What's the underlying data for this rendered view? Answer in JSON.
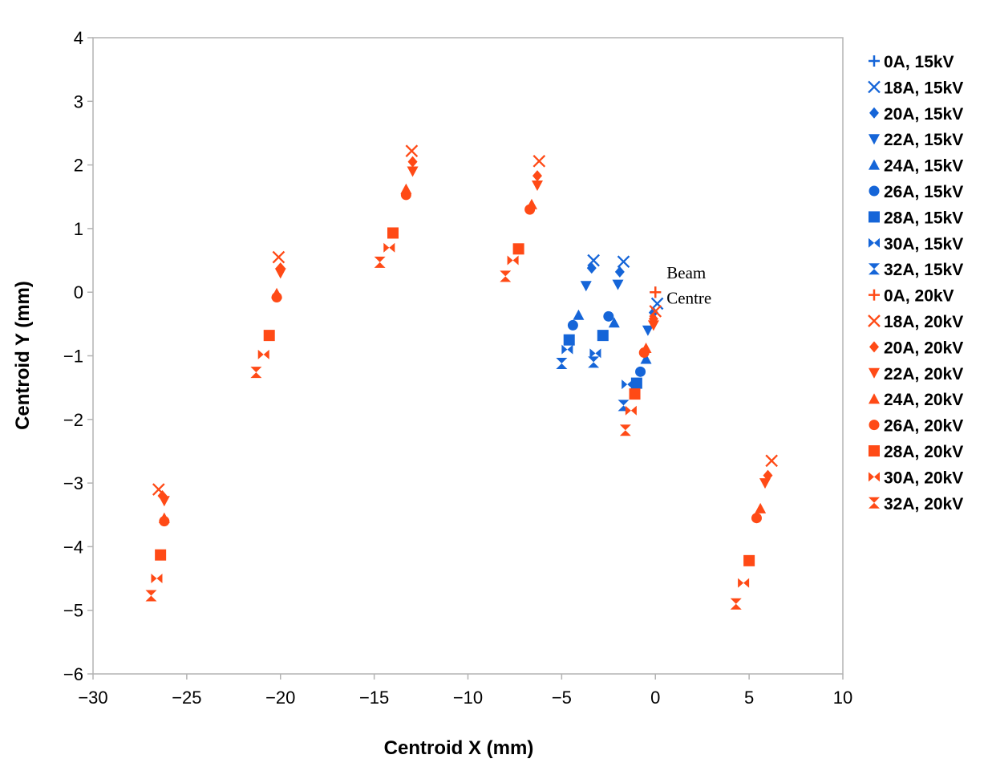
{
  "chart_data": {
    "type": "scatter",
    "title": "",
    "xlabel": "Centroid X (mm)",
    "ylabel": "Centroid Y (mm)",
    "xlim": [
      -30,
      10
    ],
    "ylim": [
      -6,
      4
    ],
    "xticks": [
      -30,
      -25,
      -20,
      -15,
      -10,
      -5,
      0,
      5,
      10
    ],
    "yticks": [
      -6,
      -5,
      -4,
      -3,
      -2,
      -1,
      0,
      1,
      2,
      3,
      4
    ],
    "xtick_labels": [
      "−30",
      "−25",
      "−20",
      "−15",
      "−10",
      "−5",
      "0",
      "5",
      "10"
    ],
    "ytick_labels": [
      "−6",
      "−5",
      "−4",
      "−3",
      "−2",
      "−1",
      "0",
      "1",
      "2",
      "3",
      "4"
    ],
    "grid": false,
    "legend_position": "right",
    "colors": {
      "15kV": "#1565d8",
      "20kV": "#ff4a16"
    },
    "series": [
      {
        "name": "0A, 15kV",
        "marker": "plus",
        "color": "#1565d8",
        "points": [
          [
            0.0,
            0.0
          ]
        ]
      },
      {
        "name": "18A, 15kV",
        "marker": "x",
        "color": "#1565d8",
        "points": [
          [
            -3.3,
            0.5
          ],
          [
            -1.7,
            0.48
          ],
          [
            0.1,
            -0.18
          ]
        ]
      },
      {
        "name": "20A, 15kV",
        "marker": "diamond",
        "color": "#1565d8",
        "points": [
          [
            -3.4,
            0.38
          ],
          [
            -1.9,
            0.32
          ],
          [
            -0.1,
            -0.32
          ]
        ]
      },
      {
        "name": "22A, 15kV",
        "marker": "triangle-down",
        "color": "#1565d8",
        "points": [
          [
            -3.7,
            0.1
          ],
          [
            -2.0,
            0.12
          ],
          [
            -0.4,
            -0.6
          ]
        ]
      },
      {
        "name": "24A, 15kV",
        "marker": "triangle-up",
        "color": "#1565d8",
        "points": [
          [
            -4.1,
            -0.36
          ],
          [
            -2.2,
            -0.48
          ],
          [
            -0.5,
            -1.05
          ]
        ]
      },
      {
        "name": "26A, 15kV",
        "marker": "circle",
        "color": "#1565d8",
        "points": [
          [
            -4.4,
            -0.52
          ],
          [
            -2.5,
            -0.38
          ],
          [
            -0.8,
            -1.25
          ]
        ]
      },
      {
        "name": "28A, 15kV",
        "marker": "square",
        "color": "#1565d8",
        "points": [
          [
            -4.6,
            -0.75
          ],
          [
            -2.8,
            -0.68
          ],
          [
            -1.0,
            -1.43
          ]
        ]
      },
      {
        "name": "30A, 15kV",
        "marker": "bowtie",
        "color": "#1565d8",
        "points": [
          [
            -4.7,
            -0.9
          ],
          [
            -3.2,
            -0.96
          ],
          [
            -1.5,
            -1.45
          ]
        ]
      },
      {
        "name": "32A, 15kV",
        "marker": "hourglass",
        "color": "#1565d8",
        "points": [
          [
            -5.0,
            -1.12
          ],
          [
            -3.3,
            -1.1
          ],
          [
            -1.7,
            -1.78
          ]
        ]
      },
      {
        "name": "0A, 20kV",
        "marker": "plus",
        "color": "#ff4a16",
        "points": [
          [
            0.0,
            0.0
          ]
        ]
      },
      {
        "name": "18A, 20kV",
        "marker": "x",
        "color": "#ff4a16",
        "points": [
          [
            -26.5,
            -3.1
          ],
          [
            -20.1,
            0.55
          ],
          [
            -13.0,
            2.22
          ],
          [
            -6.2,
            2.06
          ],
          [
            0.0,
            -0.3
          ],
          [
            6.2,
            -2.65
          ]
        ]
      },
      {
        "name": "20A, 20kV",
        "marker": "diamond",
        "color": "#ff4a16",
        "points": [
          [
            -26.3,
            -3.2
          ],
          [
            -20.0,
            0.38
          ],
          [
            -12.95,
            2.05
          ],
          [
            -6.3,
            1.83
          ],
          [
            -0.1,
            -0.42
          ],
          [
            6.0,
            -2.88
          ]
        ]
      },
      {
        "name": "22A, 20kV",
        "marker": "triangle-down",
        "color": "#ff4a16",
        "points": [
          [
            -26.2,
            -3.28
          ],
          [
            -20.0,
            0.3
          ],
          [
            -12.95,
            1.9
          ],
          [
            -6.3,
            1.68
          ],
          [
            -0.1,
            -0.52
          ],
          [
            5.85,
            -3.0
          ]
        ]
      },
      {
        "name": "24A, 20kV",
        "marker": "triangle-up",
        "color": "#ff4a16",
        "points": [
          [
            -26.2,
            -3.55
          ],
          [
            -20.2,
            -0.02
          ],
          [
            -13.3,
            1.62
          ],
          [
            -6.6,
            1.38
          ],
          [
            -0.5,
            -0.88
          ],
          [
            5.6,
            -3.4
          ]
        ]
      },
      {
        "name": "26A, 20kV",
        "marker": "circle",
        "color": "#ff4a16",
        "points": [
          [
            -26.2,
            -3.6
          ],
          [
            -20.2,
            -0.08
          ],
          [
            -13.3,
            1.53
          ],
          [
            -6.7,
            1.3
          ],
          [
            -0.6,
            -0.95
          ],
          [
            5.4,
            -3.55
          ]
        ]
      },
      {
        "name": "28A, 20kV",
        "marker": "square",
        "color": "#ff4a16",
        "points": [
          [
            -26.4,
            -4.13
          ],
          [
            -20.6,
            -0.68
          ],
          [
            -14.0,
            0.93
          ],
          [
            -7.3,
            0.68
          ],
          [
            -1.1,
            -1.6
          ],
          [
            5.0,
            -4.22
          ]
        ]
      },
      {
        "name": "30A, 20kV",
        "marker": "bowtie",
        "color": "#ff4a16",
        "points": [
          [
            -26.6,
            -4.5
          ],
          [
            -20.9,
            -0.98
          ],
          [
            -14.2,
            0.7
          ],
          [
            -7.6,
            0.5
          ],
          [
            -1.3,
            -1.86
          ],
          [
            4.7,
            -4.57
          ]
        ]
      },
      {
        "name": "32A, 20kV",
        "marker": "hourglass",
        "color": "#ff4a16",
        "points": [
          [
            -26.9,
            -4.77
          ],
          [
            -21.3,
            -1.26
          ],
          [
            -14.7,
            0.47
          ],
          [
            -8.0,
            0.25
          ],
          [
            -1.6,
            -2.17
          ],
          [
            4.3,
            -4.9
          ]
        ]
      }
    ],
    "annotations": [
      {
        "text": "Beam",
        "x": 0.6,
        "y": 0.22
      },
      {
        "text": "Centre",
        "x": 0.6,
        "y": -0.18
      }
    ]
  }
}
